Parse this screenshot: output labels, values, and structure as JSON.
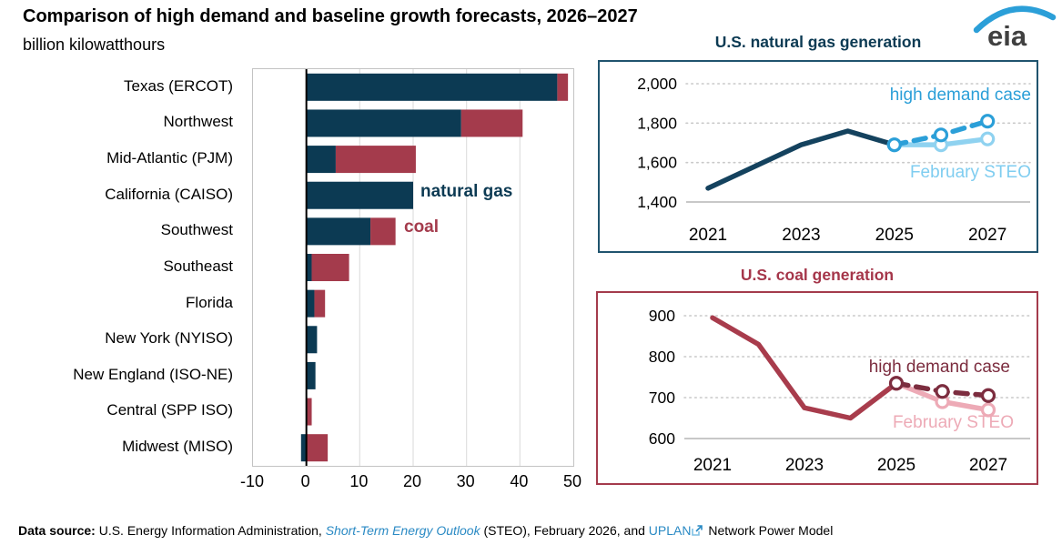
{
  "header": {
    "title": "Comparison of high demand and baseline growth forecasts, 2026–2027",
    "subtitle": "billion kilowatthours",
    "logo_text": "eia"
  },
  "footer": {
    "label": "Data source:",
    "part1": " U.S. Energy Information Administration, ",
    "link_steo": "Short-Term Energy Outlook",
    "part2": " (STEO), February 2026, and ",
    "link_uplan": "UPLAN",
    "part3": " Network Power Model"
  },
  "colors": {
    "navy": "#0c3a53",
    "bar_red": "#a43b4c",
    "gas_history": "#14425e",
    "gas_high_demand": "#2b9fd8",
    "gas_feb_steo": "#8fd2f0",
    "coal_history": "#a83c4c",
    "coal_high_demand": "#7c2d3f",
    "coal_feb_steo": "#edaab6",
    "link_blue": "#2a8ac4",
    "grid_gray": "#c9c9c9"
  },
  "chart_data": [
    {
      "id": "regional-forecast-bars",
      "type": "bar",
      "orientation": "horizontal",
      "unit": "billion kilowatthours",
      "categories": [
        "Texas (ERCOT)",
        "Northwest",
        "Mid-Atlantic (PJM)",
        "California (CAISO)",
        "Southwest",
        "Southeast",
        "Florida",
        "New York (NYISO)",
        "New England (ISO-NE)",
        "Central (SPP ISO)",
        "Midwest (MISO)"
      ],
      "series": [
        {
          "name": "natural gas",
          "color": "#0c3a53",
          "values": [
            47,
            29,
            5.5,
            20,
            12,
            1,
            1.5,
            2,
            1.7,
            0,
            -1
          ]
        },
        {
          "name": "coal",
          "color": "#a43b4c",
          "values": [
            2,
            11.5,
            15,
            0,
            4.7,
            7,
            2,
            0,
            0,
            1,
            4
          ]
        }
      ],
      "xlim": [
        -10,
        50
      ],
      "xticks": [
        -10,
        0,
        10,
        20,
        30,
        40,
        50
      ],
      "grid": true
    },
    {
      "id": "us-natural-gas-generation",
      "type": "line",
      "title": "U.S. natural gas generation",
      "ylim": [
        1400,
        2000
      ],
      "yticks": [
        1400,
        1600,
        1800,
        2000
      ],
      "xticks": [
        2021,
        2023,
        2025,
        2027
      ],
      "labels": {
        "high_demand": "high demand case",
        "steo": "February STEO"
      },
      "series": [
        {
          "name": "history",
          "color": "#14425e",
          "width": 5.5,
          "dashed": false,
          "markers": false,
          "x": [
            2021,
            2022,
            2023,
            2024,
            2025
          ],
          "values": [
            1470,
            1580,
            1690,
            1760,
            1690
          ]
        },
        {
          "name": "February STEO",
          "color": "#8fd2f0",
          "width": 5.5,
          "dashed": false,
          "markers": true,
          "x": [
            2025,
            2026,
            2027
          ],
          "values": [
            1690,
            1690,
            1720
          ]
        },
        {
          "name": "high demand case",
          "color": "#2b9fd8",
          "width": 5.5,
          "dashed": true,
          "markers": true,
          "x": [
            2025,
            2026,
            2027
          ],
          "values": [
            1690,
            1740,
            1810
          ]
        }
      ]
    },
    {
      "id": "us-coal-generation",
      "type": "line",
      "title": "U.S. coal generation",
      "ylim": [
        600,
        900
      ],
      "yticks": [
        600,
        700,
        800,
        900
      ],
      "xticks": [
        2021,
        2023,
        2025,
        2027
      ],
      "labels": {
        "high_demand": "high demand case",
        "steo": "February STEO"
      },
      "series": [
        {
          "name": "history",
          "color": "#a83c4c",
          "width": 5.5,
          "dashed": false,
          "markers": false,
          "x": [
            2021,
            2022,
            2023,
            2024,
            2025
          ],
          "values": [
            895,
            830,
            675,
            650,
            735
          ]
        },
        {
          "name": "February STEO",
          "color": "#edaab6",
          "width": 5.5,
          "dashed": false,
          "markers": true,
          "x": [
            2025,
            2026,
            2027
          ],
          "values": [
            735,
            690,
            670
          ]
        },
        {
          "name": "high demand case",
          "color": "#7c2d3f",
          "width": 5.5,
          "dashed": true,
          "markers": true,
          "x": [
            2025,
            2026,
            2027
          ],
          "values": [
            735,
            715,
            705
          ]
        }
      ]
    }
  ]
}
